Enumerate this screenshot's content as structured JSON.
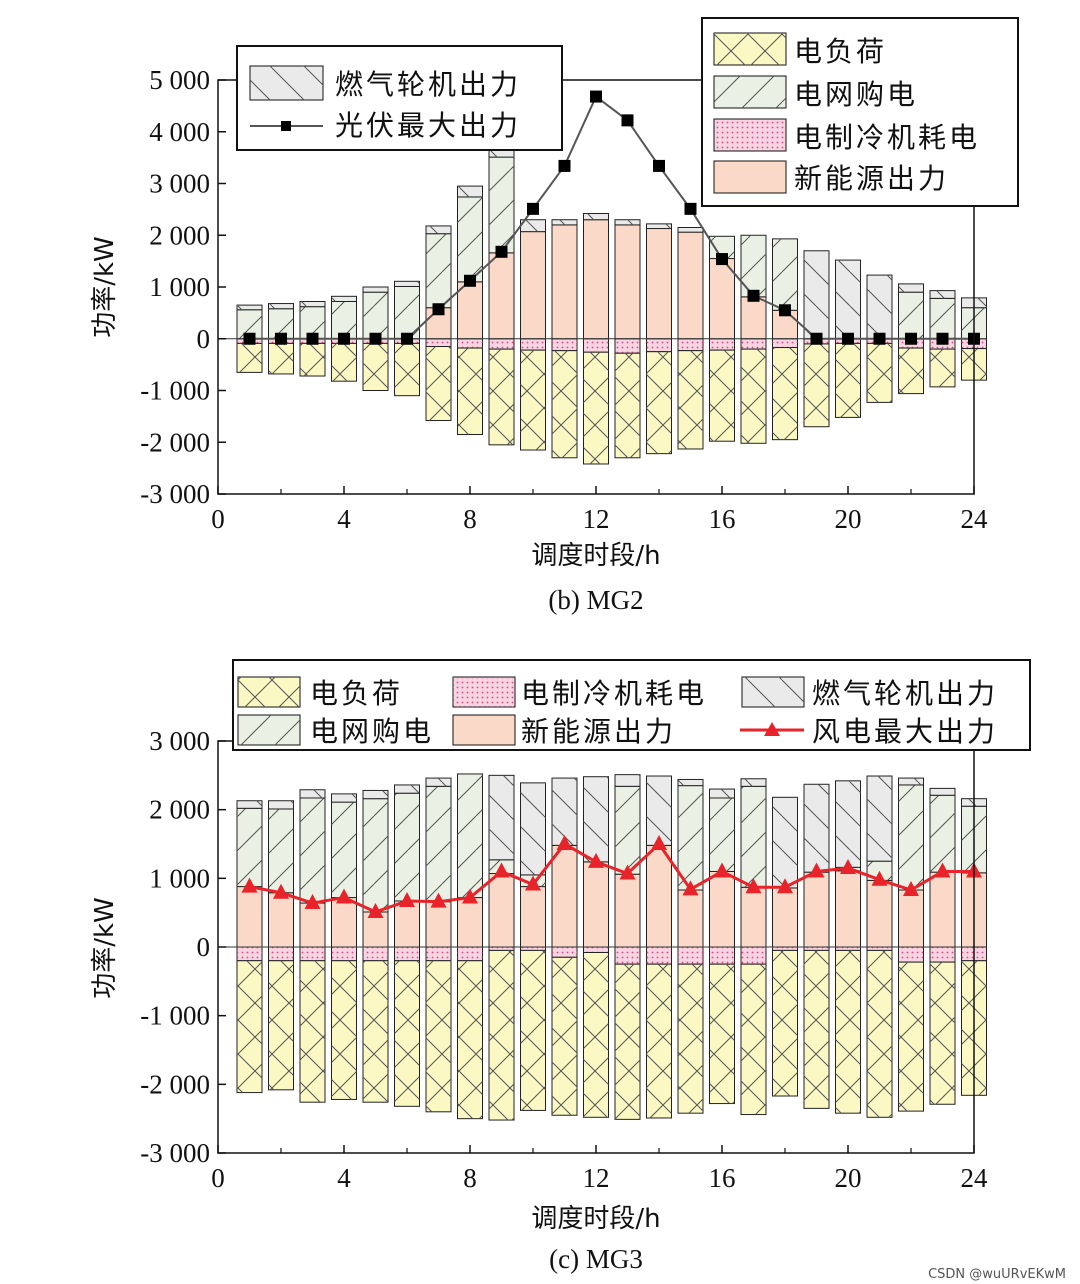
{
  "watermark": "CSDN @wuURvEKwM",
  "colors": {
    "load": "#fbf8c4",
    "grid": "#eaf0e3",
    "chiller": "#f8d4e2",
    "renew": "#fbd9c8",
    "gas": "#eaeaea",
    "pv_line": "#555555",
    "pv_marker": "#000000",
    "wind": "#e8232a"
  },
  "chart_data": [
    {
      "type": "bar",
      "title": "(b) MG2",
      "xlabel": "调度时段/h",
      "ylabel": "功率/kW",
      "xlim": [
        0,
        24
      ],
      "ylim": [
        -3000,
        5000
      ],
      "xticks": [
        "0",
        "4",
        "8",
        "12",
        "16",
        "20",
        "24"
      ],
      "yticks": [
        "-3 000",
        "-2 000",
        "-1 000",
        "0",
        "1 000",
        "2 000",
        "3 000",
        "4 000",
        "5 000"
      ],
      "x": [
        1,
        2,
        3,
        4,
        5,
        6,
        7,
        8,
        9,
        10,
        11,
        12,
        13,
        14,
        15,
        16,
        17,
        18,
        19,
        20,
        21,
        22,
        23,
        24
      ],
      "legend": [
        {
          "box": "gas",
          "label": "燃气轮机出力",
          "key": "gas",
          "marker": "hatch"
        },
        {
          "box": "gas",
          "label": "光伏最大出力",
          "key": "pv_max",
          "marker": "square-line"
        },
        {
          "box": "main",
          "label": "电负荷",
          "key": "load",
          "marker": "hatch"
        },
        {
          "box": "main",
          "label": "电网购电",
          "key": "grid",
          "marker": "hatch"
        },
        {
          "box": "main",
          "label": "电制冷机耗电",
          "key": "chiller",
          "marker": "dots"
        },
        {
          "box": "main",
          "label": "新能源出力",
          "key": "renew",
          "marker": "solid"
        }
      ],
      "series": {
        "load": [
          -650,
          -680,
          -720,
          -820,
          -1000,
          -1100,
          -1580,
          -1850,
          -2050,
          -2150,
          -2300,
          -2420,
          -2300,
          -2220,
          -2130,
          -1980,
          -2020,
          -1950,
          -1700,
          -1520,
          -1230,
          -1060,
          -930,
          -800
        ],
        "chiller": [
          -90,
          -90,
          -90,
          -90,
          -90,
          -90,
          -150,
          -180,
          -200,
          -220,
          -230,
          -260,
          -280,
          -250,
          -230,
          -220,
          -200,
          -170,
          -100,
          -90,
          -90,
          -180,
          -200,
          -190
        ],
        "renew": [
          0,
          0,
          0,
          0,
          0,
          0,
          600,
          1100,
          1660,
          2070,
          2200,
          2300,
          2200,
          2130,
          2060,
          1550,
          810,
          550,
          0,
          0,
          0,
          0,
          0,
          0
        ],
        "grid": [
          560,
          580,
          620,
          720,
          900,
          1010,
          1430,
          1640,
          1850,
          0,
          0,
          0,
          0,
          0,
          0,
          430,
          1190,
          1380,
          0,
          0,
          0,
          900,
          780,
          600
        ],
        "gas": [
          90,
          100,
          100,
          100,
          100,
          100,
          150,
          210,
          200,
          230,
          100,
          120,
          100,
          90,
          90,
          0,
          0,
          0,
          1700,
          1520,
          1230,
          160,
          150,
          190
        ],
        "pv_max": [
          0,
          0,
          0,
          0,
          0,
          0,
          570,
          1120,
          1680,
          2510,
          3340,
          4680,
          4220,
          3340,
          2510,
          1540,
          830,
          550,
          0,
          0,
          0,
          0,
          0,
          0
        ]
      }
    },
    {
      "type": "bar",
      "title": "(c) MG3",
      "xlabel": "调度时段/h",
      "ylabel": "功率/kW",
      "xlim": [
        0,
        24
      ],
      "ylim": [
        -3000,
        3000
      ],
      "xticks": [
        "0",
        "4",
        "8",
        "12",
        "16",
        "20",
        "24"
      ],
      "yticks": [
        "-3 000",
        "-2 000",
        "-1 000",
        "0",
        "1 000",
        "2 000",
        "3 000"
      ],
      "x": [
        1,
        2,
        3,
        4,
        5,
        6,
        7,
        8,
        9,
        10,
        11,
        12,
        13,
        14,
        15,
        16,
        17,
        18,
        19,
        20,
        21,
        22,
        23,
        24
      ],
      "legend": [
        {
          "label": "电负荷",
          "key": "load",
          "marker": "hatch"
        },
        {
          "label": "电制冷机耗电",
          "key": "chiller",
          "marker": "dots"
        },
        {
          "label": "燃气轮机出力",
          "key": "gas",
          "marker": "hatch"
        },
        {
          "label": "电网购电",
          "key": "grid",
          "marker": "hatch"
        },
        {
          "label": "新能源出力",
          "key": "renew",
          "marker": "solid"
        },
        {
          "label": "风电最大出力",
          "key": "wind_max",
          "marker": "triangle-line"
        }
      ],
      "series": {
        "load": [
          -2120,
          -2080,
          -2260,
          -2220,
          -2260,
          -2320,
          -2400,
          -2500,
          -2520,
          -2380,
          -2450,
          -2480,
          -2510,
          -2490,
          -2420,
          -2280,
          -2440,
          -2170,
          -2350,
          -2420,
          -2480,
          -2390,
          -2290,
          -2160
        ],
        "chiller": [
          -200,
          -200,
          -200,
          -200,
          -200,
          -200,
          -200,
          -200,
          -50,
          -50,
          -150,
          -80,
          -250,
          -250,
          -250,
          -250,
          -250,
          -50,
          -50,
          -50,
          -50,
          -220,
          -220,
          -200
        ],
        "renew": [
          880,
          790,
          640,
          720,
          510,
          670,
          660,
          720,
          1070,
          880,
          1480,
          1240,
          1060,
          1480,
          830,
          1100,
          870,
          860,
          1090,
          1110,
          970,
          830,
          1090,
          1080
        ],
        "grid": [
          1140,
          1220,
          1530,
          1390,
          1650,
          1570,
          1680,
          1800,
          200,
          170,
          0,
          0,
          1280,
          0,
          1520,
          1070,
          1470,
          0,
          0,
          50,
          280,
          1530,
          1120,
          970
        ],
        "gas": [
          110,
          120,
          120,
          120,
          120,
          120,
          120,
          0,
          1230,
          1340,
          980,
          1240,
          170,
          1010,
          90,
          130,
          110,
          1320,
          1280,
          1260,
          1240,
          100,
          100,
          110
        ],
        "wind_max": [
          880,
          790,
          640,
          720,
          510,
          670,
          660,
          720,
          1100,
          910,
          1500,
          1240,
          1070,
          1500,
          840,
          1100,
          870,
          870,
          1100,
          1150,
          980,
          830,
          1100,
          1100
        ]
      }
    }
  ]
}
